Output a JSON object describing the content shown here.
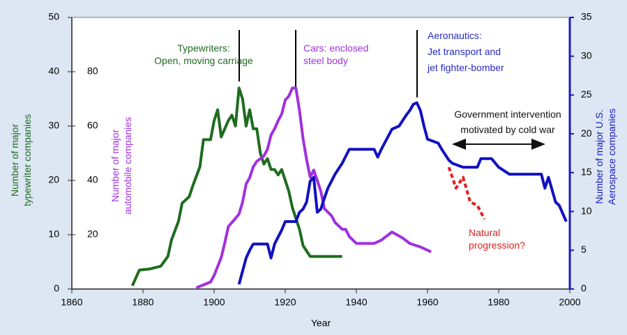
{
  "chart_data": {
    "type": "line",
    "xlabel": "Year",
    "xlim": [
      1860,
      2000
    ],
    "xticks": [
      1860,
      1880,
      1900,
      1920,
      1940,
      1960,
      1980,
      2000
    ],
    "ylim": [
      0,
      50
    ],
    "yticks": [
      0,
      10,
      20,
      30,
      40,
      50
    ],
    "ylabel": [
      "Number of major",
      "typewriter companies"
    ],
    "ylabel_color": "#1f6b1f",
    "y3lim": [
      0,
      100
    ],
    "y3ticks": [
      20,
      40,
      60,
      80
    ],
    "y3label": [
      "Number of major",
      "automobile companies"
    ],
    "y3label_color": "#a030e0",
    "y2lim": [
      0,
      35
    ],
    "y2ticks": [
      0,
      5,
      10,
      15,
      20,
      25,
      30,
      35
    ],
    "y2label": [
      "Number of major U.S.",
      "Aerospace companies"
    ],
    "y2label_color": "#1a1ac0",
    "series": [
      {
        "color": "#1f6b1f",
        "axis": "y",
        "dash": false,
        "x": [
          1877,
          1879,
          1882,
          1885,
          1887,
          1888,
          1890,
          1891,
          1893,
          1894,
          1896,
          1897,
          1899,
          1900,
          1901,
          1902,
          1904,
          1905,
          1906,
          1907,
          1908,
          1909,
          1910,
          1911,
          1912,
          1913,
          1914,
          1915,
          1916,
          1917,
          1918,
          1919,
          1920,
          1921,
          1922,
          1923,
          1924,
          1925,
          1926,
          1927,
          1936
        ],
        "values": [
          0.6,
          3.5,
          3.7,
          4.2,
          6,
          9,
          12.5,
          15.8,
          17,
          19,
          22.5,
          27.5,
          27.5,
          31,
          33,
          28,
          31,
          32,
          30,
          37,
          35,
          30,
          33,
          29.5,
          29.5,
          25,
          23,
          24,
          22,
          22,
          21,
          22,
          20,
          18,
          15,
          13,
          11,
          8,
          7,
          6,
          6
        ]
      },
      {
        "color": "#a030e0",
        "axis": "y3",
        "dash": false,
        "x": [
          1895,
          1899,
          1900,
          1902,
          1903,
          1904,
          1906,
          1907,
          1908,
          1909,
          1910,
          1911,
          1912,
          1914,
          1915,
          1916,
          1917,
          1918,
          1919,
          1920,
          1921,
          1922,
          1923,
          1924,
          1925,
          1926,
          1927,
          1928,
          1929,
          1930,
          1931,
          1933,
          1934,
          1936,
          1937,
          1938,
          1940,
          1945,
          1947,
          1950,
          1953,
          1955,
          1958,
          1961
        ],
        "values": [
          0.5,
          2.6,
          5,
          11.6,
          17,
          23,
          26,
          27.6,
          32,
          38.7,
          41,
          45,
          47,
          49,
          51.5,
          56.7,
          59,
          62,
          64.4,
          69.6,
          71,
          74,
          74,
          65.7,
          55.4,
          47.7,
          41.2,
          43.8,
          40,
          36,
          29.6,
          27,
          24.5,
          22,
          22,
          19.3,
          16.8,
          16.8,
          18,
          21,
          18.8,
          16.8,
          15.5,
          13.7
        ]
      },
      {
        "color": "#1010c0",
        "axis": "y2",
        "dash": false,
        "x": [
          1907,
          1909,
          1910,
          1911,
          1915,
          1916,
          1917,
          1918,
          1919,
          1920,
          1923,
          1924,
          1925,
          1926,
          1927,
          1928,
          1929,
          1930,
          1931,
          1932,
          1934,
          1936,
          1938,
          1940,
          1945,
          1946,
          1947,
          1950,
          1952,
          1954,
          1955,
          1956,
          1957,
          1958,
          1959,
          1960,
          1963,
          1964,
          1966,
          1967,
          1970,
          1974,
          1975,
          1978,
          1980,
          1983,
          1992,
          1993,
          1994,
          1996,
          1997,
          1999
        ],
        "values": [
          0.6,
          4,
          5,
          5.8,
          5.8,
          4,
          5.8,
          6.7,
          7.6,
          8.7,
          8.7,
          9.9,
          10.3,
          11.2,
          13.9,
          14.4,
          9.9,
          10.3,
          11.7,
          13,
          14.8,
          16.2,
          18,
          18,
          18,
          17,
          18,
          20.6,
          21,
          22.4,
          23,
          23.8,
          24,
          23,
          21,
          19.3,
          18.8,
          18,
          16.6,
          16.2,
          15.7,
          15.7,
          16.8,
          16.8,
          15.7,
          14.8,
          14.8,
          13,
          14.4,
          11.2,
          10.8,
          8.7
        ]
      },
      {
        "color": "#e02020",
        "axis": "y2",
        "dash": true,
        "x": [
          1966,
          1968,
          1970,
          1972,
          1974,
          1976
        ],
        "values": [
          15.7,
          13,
          14.4,
          11.2,
          10.8,
          9
        ]
      }
    ],
    "annotations": [
      {
        "lines": [
          "Typewriters:",
          "Open, moving carriage"
        ],
        "color": "#1f6b1f"
      },
      {
        "lines": [
          "Cars: enclosed",
          "steel body"
        ],
        "color": "#a030e0"
      },
      {
        "lines": [
          "Aeronautics:",
          "Jet transport and",
          "jet fighter-bomber"
        ],
        "color": "#2a2ac8"
      },
      {
        "lines": [
          "Government intervention",
          "motivated by cold war"
        ],
        "color": "#111111"
      },
      {
        "lines": [
          "Natural",
          "progression?"
        ],
        "color": "#e02020"
      }
    ]
  }
}
